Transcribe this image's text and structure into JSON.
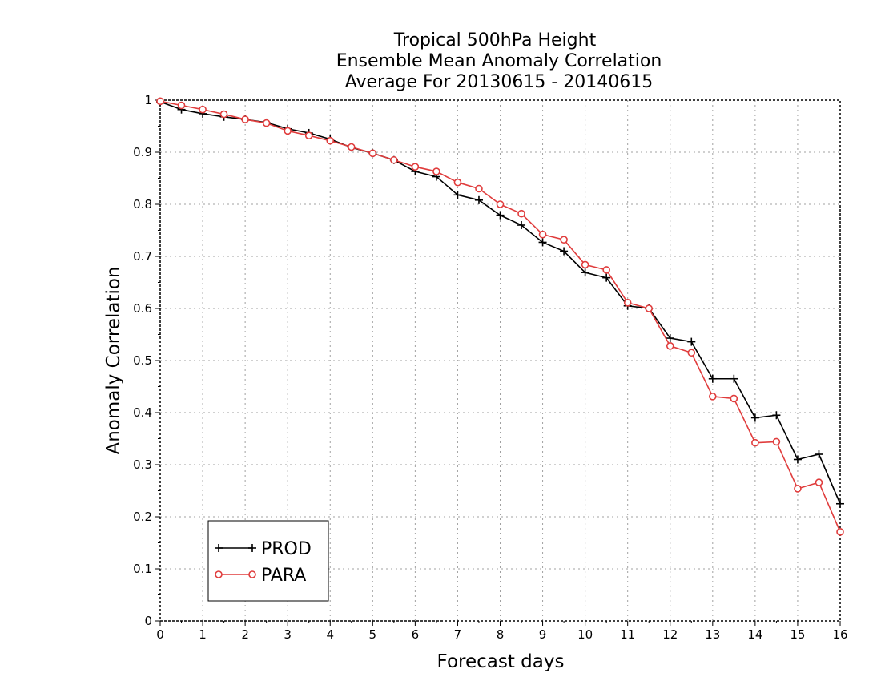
{
  "chart_data": {
    "type": "line",
    "title": [
      "Tropical 500hPa Height",
      "Ensemble Mean Anomaly Correlation",
      "Average For 20130615 - 20140615"
    ],
    "xlabel": "Forecast days",
    "ylabel": "Anomaly Correlation",
    "xlim": [
      0,
      16
    ],
    "ylim": [
      0,
      1
    ],
    "x_ticks": [
      0,
      1,
      2,
      3,
      4,
      5,
      6,
      7,
      8,
      9,
      10,
      11,
      12,
      13,
      14,
      15,
      16
    ],
    "y_ticks": [
      0,
      0.1,
      0.2,
      0.3,
      0.4,
      0.5,
      0.6,
      0.7,
      0.8,
      0.9,
      1
    ],
    "grid": true,
    "legend_position": "bottom-left",
    "x": [
      0,
      0.5,
      1,
      1.5,
      2,
      2.5,
      3,
      3.5,
      4,
      4.5,
      5,
      5.5,
      6,
      6.5,
      7,
      7.5,
      8,
      8.5,
      9,
      9.5,
      10,
      10.5,
      11,
      11.5,
      12,
      12.5,
      13,
      13.5,
      14,
      14.5,
      15,
      15.5,
      16
    ],
    "series": [
      {
        "name": "PROD",
        "color": "#000000",
        "marker": "plus",
        "values": [
          0.997,
          0.982,
          0.974,
          0.968,
          0.963,
          0.957,
          0.945,
          0.937,
          0.925,
          0.909,
          0.898,
          0.885,
          0.863,
          0.853,
          0.818,
          0.808,
          0.779,
          0.76,
          0.727,
          0.71,
          0.669,
          0.659,
          0.605,
          0.6,
          0.543,
          0.536,
          0.465,
          0.465,
          0.39,
          0.395,
          0.31,
          0.32,
          0.225
        ]
      },
      {
        "name": "PARA",
        "color": "#e03c3c",
        "marker": "circle",
        "values": [
          0.998,
          0.99,
          0.982,
          0.973,
          0.963,
          0.956,
          0.941,
          0.932,
          0.922,
          0.91,
          0.898,
          0.885,
          0.872,
          0.863,
          0.842,
          0.83,
          0.8,
          0.782,
          0.742,
          0.732,
          0.684,
          0.674,
          0.611,
          0.6,
          0.528,
          0.515,
          0.431,
          0.427,
          0.342,
          0.344,
          0.254,
          0.266,
          0.171
        ]
      }
    ]
  }
}
